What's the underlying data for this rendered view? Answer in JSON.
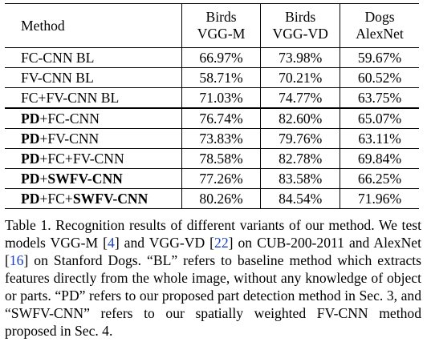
{
  "table": {
    "headers": {
      "method": "Method",
      "col1": {
        "line1": "Birds",
        "line2": "VGG-M"
      },
      "col2": {
        "line1": "Birds",
        "line2": "VGG-VD"
      },
      "col3": {
        "line1": "Dogs",
        "line2": "AlexNet"
      }
    },
    "rows": [
      {
        "method": "FC-CNN BL",
        "bold_prefix": "",
        "bold_suffix": "",
        "v1": "66.97%",
        "v2": "73.98%",
        "v3": "59.67%"
      },
      {
        "method": "FV-CNN BL",
        "bold_prefix": "",
        "bold_suffix": "",
        "v1": "58.71%",
        "v2": "70.21%",
        "v3": "60.52%"
      },
      {
        "method": "FC+FV-CNN BL",
        "bold_prefix": "",
        "bold_suffix": "",
        "v1": "71.03%",
        "v2": "74.77%",
        "v3": "63.75%"
      },
      {
        "method": "+FC-CNN",
        "bold_prefix": "PD",
        "bold_suffix": "",
        "v1": "76.74%",
        "v2": "82.60%",
        "v3": "65.07%"
      },
      {
        "method": "+FV-CNN",
        "bold_prefix": "PD",
        "bold_suffix": "",
        "v1": "73.83%",
        "v2": "79.76%",
        "v3": "63.11%"
      },
      {
        "method": "+FC+FV-CNN",
        "bold_prefix": "PD",
        "bold_suffix": "",
        "v1": "78.58%",
        "v2": "82.78%",
        "v3": "69.84%"
      },
      {
        "method": "+",
        "bold_prefix": "PD",
        "bold_suffix": "SWFV-CNN",
        "v1": "77.26%",
        "v2": "83.58%",
        "v3": "66.25%"
      },
      {
        "method": "+FC+",
        "bold_prefix": "PD",
        "bold_suffix": "SWFV-CNN",
        "v1": "80.26%",
        "v2": "84.54%",
        "v3": "71.96%"
      }
    ]
  },
  "caption": {
    "label": "Table 1.",
    "t1": " Recognition results of different variants of our method. We test models VGG-M [",
    "ref1": "4",
    "t2": "] and VGG-VD [",
    "ref2": "22",
    "t3": "] on CUB-200-2011 and AlexNet [",
    "ref3": "16",
    "t4": "] on Stanford Dogs. “BL” refers to baseline method which extracts features directly from the whole image, without any knowledge of object or parts. “PD” refers to our proposed part detection method in Sec. 3, and “SWFV-CNN” refers to our spatially weighted FV-CNN method proposed in Sec. 4."
  },
  "colors": {
    "citation": "#1a40c8"
  }
}
